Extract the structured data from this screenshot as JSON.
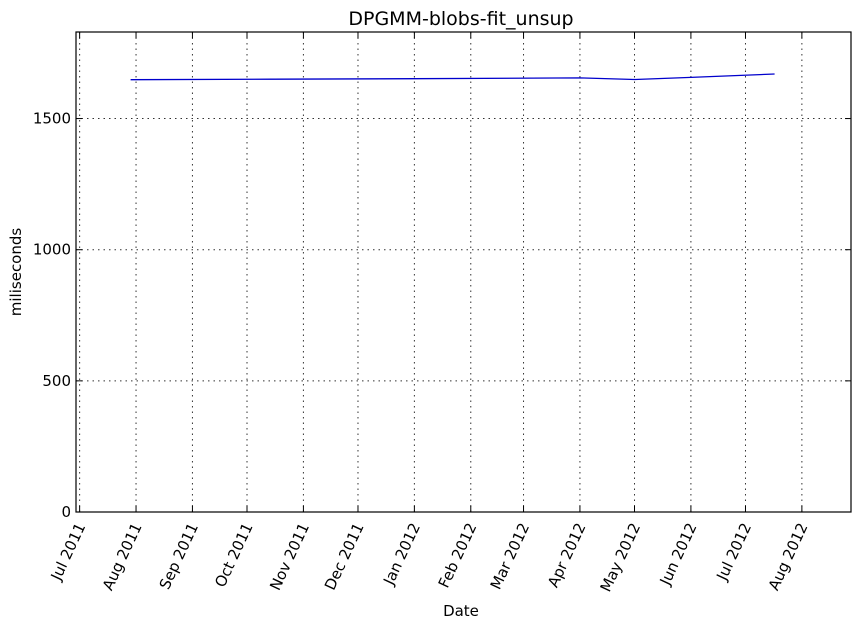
{
  "chart_data": {
    "type": "line",
    "title": "DPGMM-blobs-fit_unsup",
    "xlabel": "Date",
    "ylabel": "miliseconds",
    "x_type": "date",
    "xlim": [
      "2011-06-29",
      "2012-08-28"
    ],
    "ylim": [
      0,
      1830
    ],
    "x_ticks": [
      {
        "date": "2011-07-01",
        "label": "Jul 2011"
      },
      {
        "date": "2011-08-01",
        "label": "Aug 2011"
      },
      {
        "date": "2011-09-01",
        "label": "Sep 2011"
      },
      {
        "date": "2011-10-01",
        "label": "Oct 2011"
      },
      {
        "date": "2011-11-01",
        "label": "Nov 2011"
      },
      {
        "date": "2011-12-01",
        "label": "Dec 2011"
      },
      {
        "date": "2012-01-01",
        "label": "Jan 2012"
      },
      {
        "date": "2012-02-01",
        "label": "Feb 2012"
      },
      {
        "date": "2012-03-01",
        "label": "Mar 2012"
      },
      {
        "date": "2012-04-01",
        "label": "Apr 2012"
      },
      {
        "date": "2012-05-01",
        "label": "May 2012"
      },
      {
        "date": "2012-06-01",
        "label": "Jun 2012"
      },
      {
        "date": "2012-07-01",
        "label": "Jul 2012"
      },
      {
        "date": "2012-08-01",
        "label": "Aug 2012"
      }
    ],
    "y_ticks": [
      0,
      500,
      1000,
      1500
    ],
    "grid": true,
    "series": [
      {
        "color": "#0000cc",
        "points": [
          {
            "x": "2011-07-29",
            "y": 1648
          },
          {
            "x": "2011-10-15",
            "y": 1650
          },
          {
            "x": "2012-01-01",
            "y": 1652
          },
          {
            "x": "2012-04-01",
            "y": 1655
          },
          {
            "x": "2012-05-01",
            "y": 1649
          },
          {
            "x": "2012-06-01",
            "y": 1657
          },
          {
            "x": "2012-07-17",
            "y": 1670
          }
        ]
      }
    ]
  }
}
